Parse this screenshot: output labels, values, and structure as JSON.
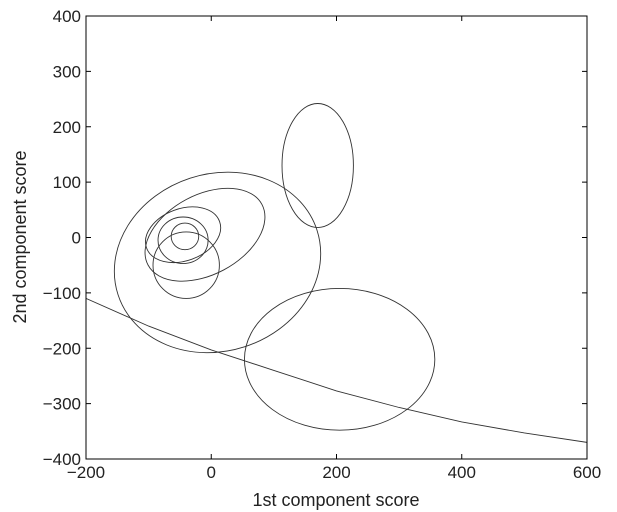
{
  "chart_data": {
    "type": "scatter",
    "title": "",
    "xlabel": "1st component score",
    "ylabel": "2nd component score",
    "xlim": [
      -200,
      600
    ],
    "ylim": [
      -400,
      400
    ],
    "xticks": [
      -200,
      0,
      200,
      400,
      600
    ],
    "yticks": [
      -400,
      -300,
      -200,
      -100,
      0,
      100,
      200,
      300,
      400
    ],
    "xtick_labels": [
      "−200",
      "0",
      "200",
      "400",
      "600"
    ],
    "ytick_labels": [
      "−400",
      "−300",
      "−200",
      "−100",
      "0",
      "100",
      "200",
      "300",
      "400"
    ],
    "grid": false,
    "ellipses": [
      {
        "cx": 170,
        "cy": 130,
        "rx": 57,
        "ry": 112,
        "rotation": 0
      },
      {
        "cx": 205,
        "cy": -220,
        "rx": 152,
        "ry": 128,
        "rotation": 0
      },
      {
        "cx": 10,
        "cy": -45,
        "rx": 167,
        "ry": 160,
        "rotation": -18
      },
      {
        "cx": -10,
        "cy": 5,
        "rx": 103,
        "ry": 72,
        "rotation": -28
      },
      {
        "cx": -40,
        "cy": -50,
        "rx": 53,
        "ry": 60,
        "rotation": 0
      },
      {
        "cx": -45,
        "cy": 5,
        "rx": 62,
        "ry": 47,
        "rotation": -20
      },
      {
        "cx": -45,
        "cy": -5,
        "rx": 40,
        "ry": 42,
        "rotation": 0
      },
      {
        "cx": -42,
        "cy": 2,
        "rx": 22,
        "ry": 24,
        "rotation": 0
      }
    ],
    "boundary_curve": {
      "x": [
        -200,
        -100,
        0,
        100,
        200,
        300,
        400,
        500,
        600
      ],
      "y": [
        -110,
        -160,
        -203,
        -240,
        -277,
        -307,
        -333,
        -353,
        -370
      ]
    }
  }
}
